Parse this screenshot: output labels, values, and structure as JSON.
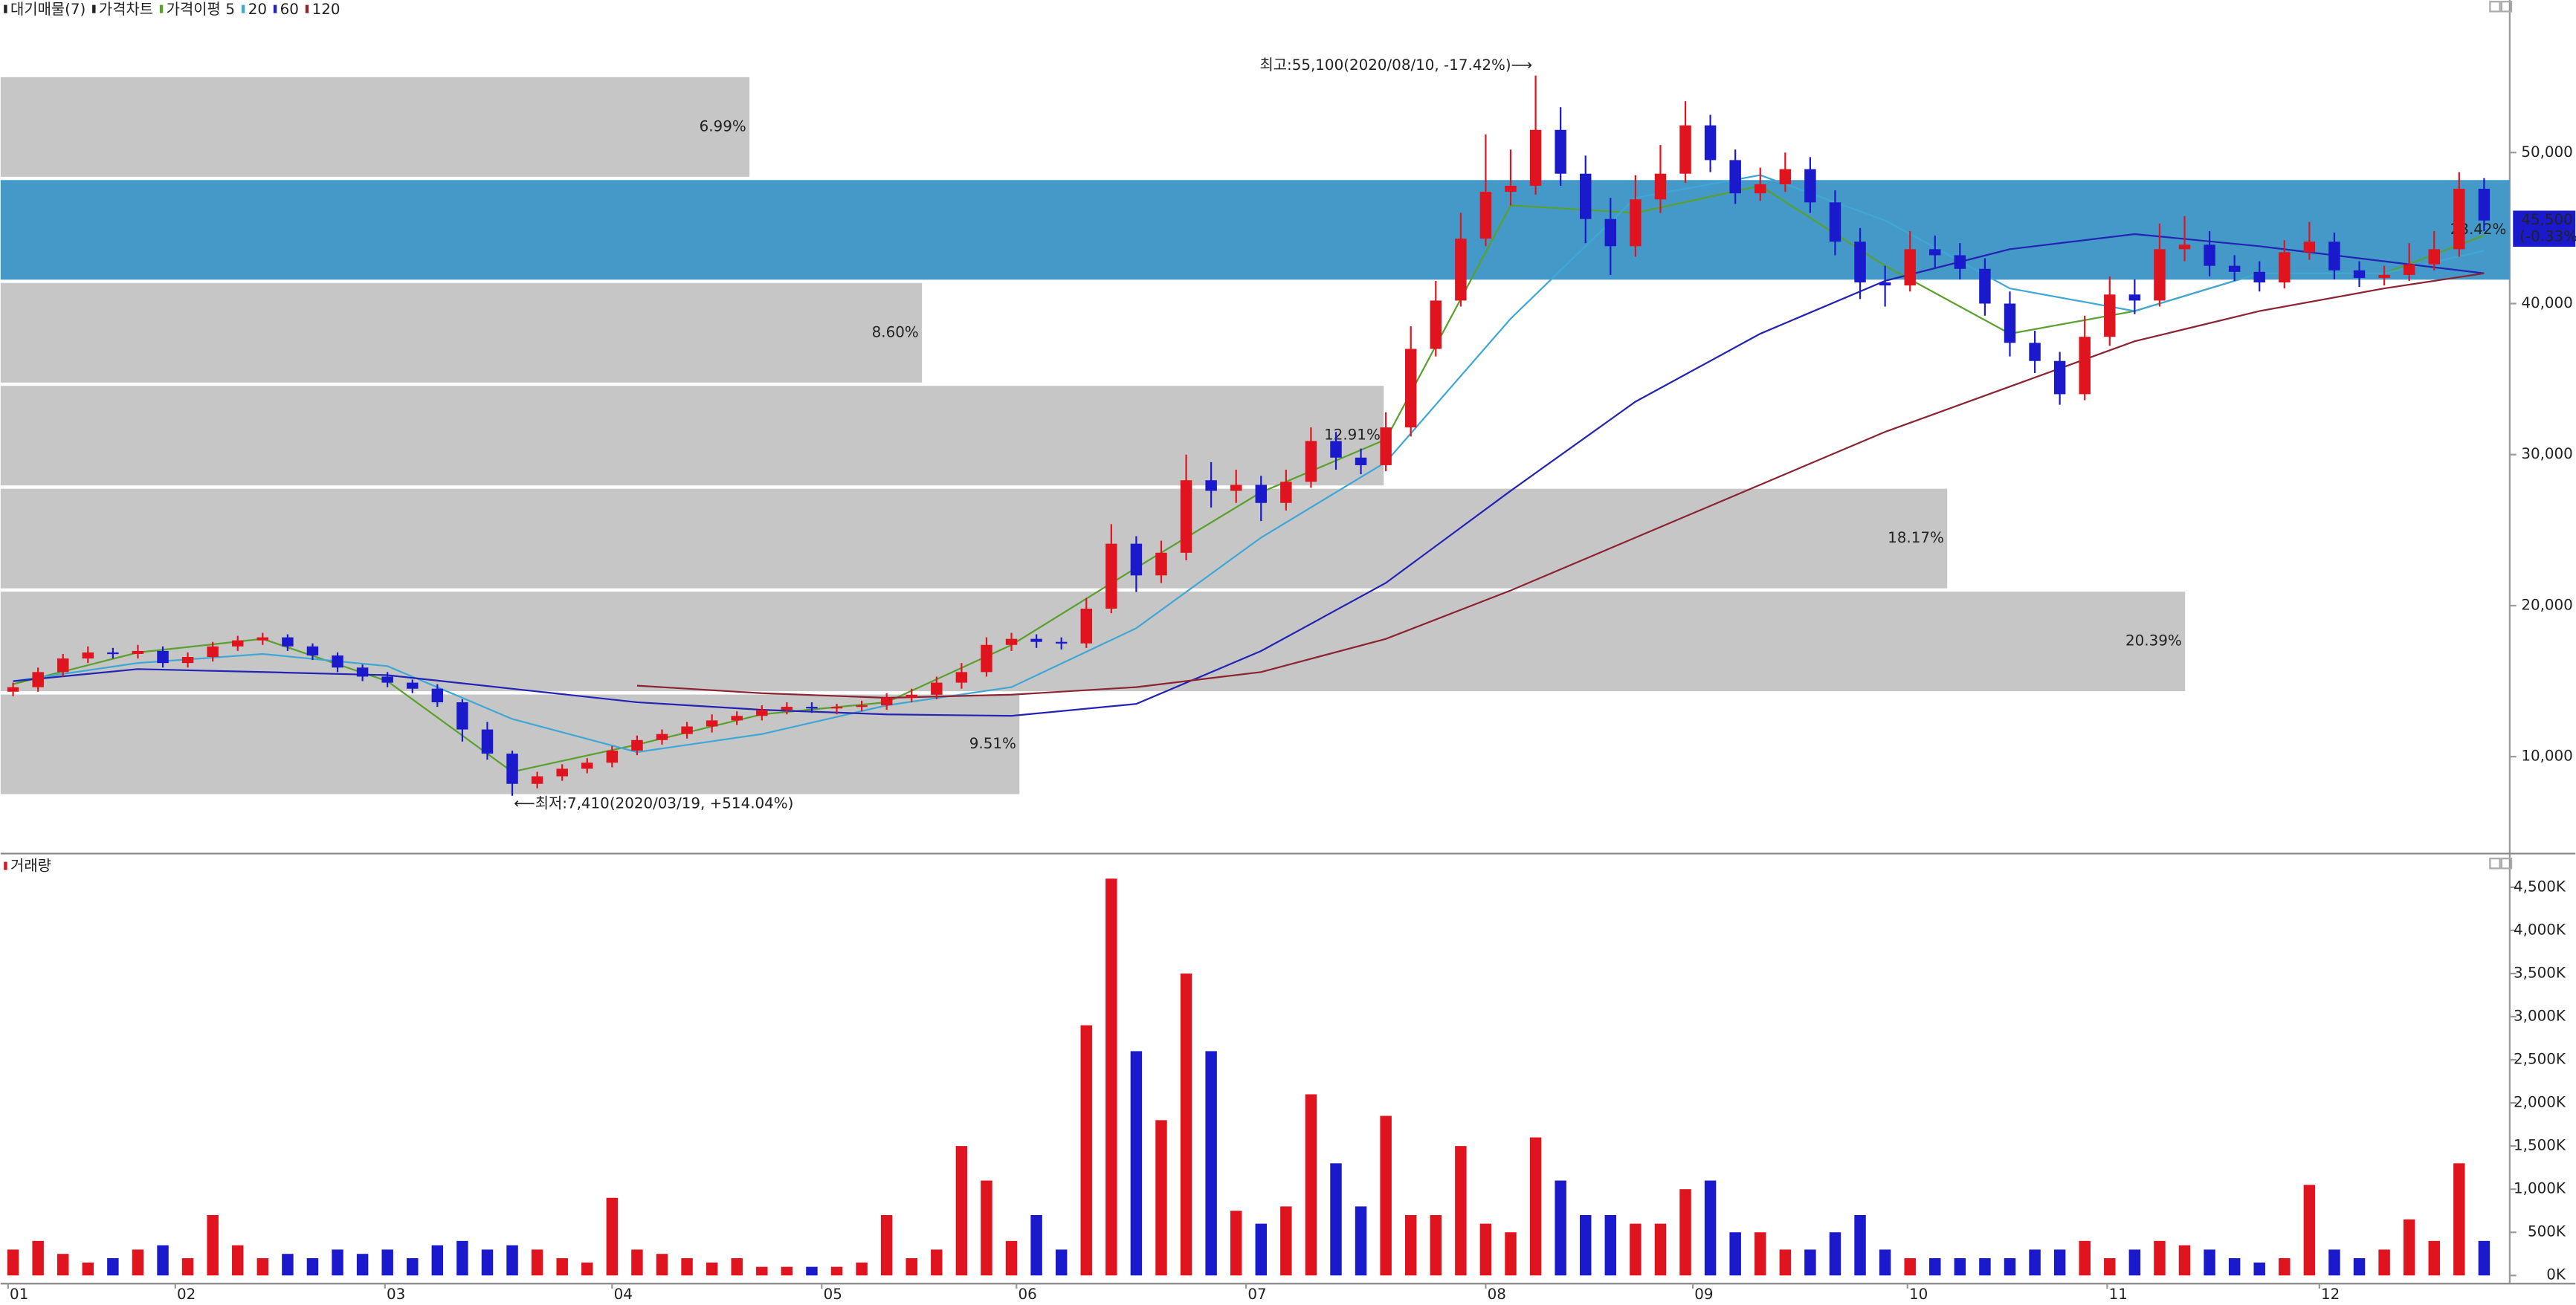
{
  "chart_data": [
    {
      "type": "candlestick",
      "price_name": "가격차트",
      "up_color": "#e0141e",
      "down_color": "#1a1acc",
      "xticks": [
        {
          "value": 0.3,
          "label": "01"
        },
        {
          "value": 7.0,
          "label": "02"
        },
        {
          "value": 15.4,
          "label": "03"
        },
        {
          "value": 24.5,
          "label": "04"
        },
        {
          "value": 32.9,
          "label": "05"
        },
        {
          "value": 40.7,
          "label": "06"
        },
        {
          "value": 49.9,
          "label": "07"
        },
        {
          "value": 59.5,
          "label": "08"
        },
        {
          "value": 67.8,
          "label": "09"
        },
        {
          "value": 76.4,
          "label": "10"
        },
        {
          "value": 84.4,
          "label": "11"
        },
        {
          "value": 92.9,
          "label": "12"
        }
      ],
      "ylim": [
        3800,
        60100
      ],
      "yticks": [
        {
          "value": 10000,
          "label": "10,000"
        },
        {
          "value": 20000,
          "label": "20,000"
        },
        {
          "value": 30000,
          "label": "30,000"
        },
        {
          "value": 40000,
          "label": "40,000"
        },
        {
          "value": 50000,
          "label": "50,000"
        }
      ],
      "open": [
        14300,
        14600,
        15600,
        16500,
        16900,
        16800,
        17000,
        16200,
        16600,
        17300,
        17700,
        17900,
        17300,
        16700,
        15900,
        15300,
        14900,
        14500,
        13600,
        11800,
        10200,
        8200,
        8700,
        9200,
        9600,
        10400,
        11100,
        11500,
        12000,
        12400,
        12700,
        13100,
        13300,
        13200,
        13300,
        13400,
        13900,
        14100,
        14900,
        15600,
        17400,
        17800,
        17600,
        17500,
        19800,
        24100,
        22000,
        23500,
        28300,
        27600,
        28000,
        26800,
        28200,
        30900,
        29800,
        29300,
        31800,
        37000,
        40200,
        44300,
        47400,
        47800,
        51500,
        48600,
        45600,
        43800,
        46900,
        48600,
        51800,
        49500,
        47300,
        47900,
        48900,
        46700,
        44100,
        41400,
        41200,
        43600,
        43200,
        42300,
        40000,
        37400,
        36200,
        34000,
        37800,
        40600,
        40200,
        43600,
        43900,
        42500,
        42100,
        41400,
        43400,
        44100,
        42200,
        41700,
        41900,
        42600,
        43600,
        47600
      ],
      "high": [
        14900,
        15900,
        16800,
        17300,
        17200,
        17400,
        17300,
        16900,
        17600,
        18000,
        18200,
        18100,
        17500,
        16900,
        16100,
        15600,
        15100,
        14800,
        13800,
        12300,
        10400,
        9000,
        9500,
        9900,
        10700,
        11400,
        11800,
        12300,
        12800,
        13000,
        13400,
        13600,
        13600,
        13500,
        13700,
        14200,
        14500,
        15300,
        16200,
        17900,
        18200,
        18100,
        17900,
        20500,
        25400,
        24600,
        24300,
        30000,
        29500,
        29000,
        28600,
        29000,
        31800,
        31500,
        30400,
        32800,
        38500,
        41500,
        46000,
        51200,
        50200,
        55100,
        53000,
        49800,
        47000,
        48500,
        50500,
        53400,
        52500,
        50200,
        49000,
        50000,
        49700,
        47500,
        45000,
        42500,
        44800,
        44500,
        44000,
        43000,
        40800,
        38200,
        36800,
        39200,
        41800,
        41600,
        45300,
        45800,
        44800,
        43200,
        42800,
        44200,
        45400,
        44700,
        42800,
        42500,
        44000,
        44800,
        48700,
        48300
      ],
      "low": [
        14000,
        14300,
        15300,
        16200,
        16500,
        16500,
        15900,
        15900,
        16300,
        17000,
        17400,
        17000,
        16400,
        15600,
        15000,
        14600,
        14200,
        13300,
        11000,
        9800,
        7410,
        7900,
        8400,
        8900,
        9300,
        10100,
        10800,
        11200,
        11600,
        12100,
        12400,
        12800,
        12900,
        12800,
        13000,
        13100,
        13600,
        13800,
        14500,
        15300,
        17000,
        17200,
        17100,
        17200,
        19500,
        20900,
        21500,
        23000,
        26500,
        26800,
        25600,
        26300,
        27800,
        29000,
        28700,
        28900,
        31200,
        36500,
        39800,
        43800,
        46500,
        47200,
        47800,
        44000,
        41900,
        43100,
        46000,
        48000,
        48700,
        46600,
        46800,
        47400,
        46000,
        43200,
        40300,
        39800,
        40800,
        42400,
        41600,
        39200,
        36500,
        35400,
        33300,
        33600,
        37200,
        39300,
        39800,
        42800,
        41800,
        41500,
        40800,
        41000,
        42900,
        41600,
        41100,
        41200,
        41500,
        42200,
        43100,
        44800
      ],
      "close": [
        14600,
        15600,
        16500,
        16900,
        16800,
        17000,
        16200,
        16600,
        17300,
        17700,
        17900,
        17300,
        16700,
        15900,
        15300,
        14900,
        14500,
        13600,
        11800,
        10200,
        8200,
        8700,
        9200,
        9600,
        10400,
        11100,
        11500,
        12000,
        12400,
        12700,
        13100,
        13300,
        13200,
        13300,
        13400,
        13900,
        14100,
        14900,
        15600,
        17400,
        17800,
        17600,
        17500,
        19800,
        24100,
        22000,
        23500,
        28300,
        27600,
        28000,
        26800,
        28200,
        30900,
        29800,
        29300,
        31800,
        37000,
        40200,
        44300,
        47400,
        47800,
        51500,
        48600,
        45600,
        43800,
        46900,
        48600,
        51800,
        49500,
        47300,
        47900,
        48900,
        46700,
        44100,
        41400,
        41200,
        43600,
        43200,
        42300,
        40000,
        37400,
        36200,
        34000,
        37800,
        40600,
        40200,
        43600,
        43900,
        42500,
        42100,
        41400,
        43400,
        44100,
        42200,
        41700,
        41900,
        42600,
        43600,
        47600,
        45500
      ],
      "moving_averages": {
        "title": "가격이평",
        "x": [
          0,
          5,
          10,
          15,
          20,
          25,
          30,
          35,
          40,
          45,
          50,
          55,
          60,
          65,
          70,
          75,
          80,
          85,
          90,
          95,
          99
        ],
        "series": [
          {
            "name": "5",
            "color": "#5aa02c",
            "values": [
              14800,
              16900,
              17800,
              15000,
              9000,
              10800,
              12800,
              13600,
              17400,
              22500,
              27500,
              31000,
              46500,
              46000,
              47800,
              42500,
              38000,
              39500,
              42000,
              42000,
              44500
            ]
          },
          {
            "name": "20",
            "color": "#3fa7d6",
            "values": [
              15000,
              16200,
              16800,
              16000,
              12500,
              10300,
              11500,
              13400,
              14600,
              18500,
              24500,
              29500,
              39000,
              47000,
              48500,
              45500,
              41000,
              39500,
              42000,
              42000,
              43500
            ]
          },
          {
            "name": "60",
            "color": "#2323b4",
            "values": [
              15000,
              15800,
              15600,
              15400,
              14500,
              13600,
              13100,
              12800,
              12700,
              13500,
              17000,
              21500,
              27600,
              33500,
              38000,
              41500,
              43600,
              44600,
              43800,
              42800,
              42000
            ]
          },
          {
            "name": "120",
            "color": "#8b2332",
            "values": [
              null,
              null,
              null,
              null,
              null,
              14700,
              14200,
              13900,
              14100,
              14600,
              15600,
              17800,
              21000,
              24500,
              28000,
              31500,
              34500,
              37500,
              39500,
              41000,
              42000
            ]
          }
        ]
      },
      "supply_zones": {
        "title": "대기매물(7)",
        "color": "#c6c6c6",
        "highlight_color": "#4499c9",
        "highlight": 5,
        "bins": [
          7410,
          14223,
          21036,
          27849,
          34661,
          41474,
          48287,
          55100
        ],
        "values": [
          9.51,
          20.39,
          18.17,
          12.91,
          8.6,
          23.42,
          6.99
        ],
        "value_labels": [
          "9.51%",
          "20.39%",
          "18.17%",
          "12.91%",
          "8.60%",
          "23.42%",
          "6.99%"
        ]
      },
      "annotations": {
        "high": "최고:55,100(2020/08/10, -17.42%)⟶",
        "low": "⟵최저:7,410(2020/03/19, +514.04%)"
      },
      "last_price": {
        "label": "45,500",
        "change": "(-0.33%)"
      }
    },
    {
      "type": "volume_bar",
      "title": "거래량",
      "ylim": [
        0,
        4700
      ],
      "yticks": [
        {
          "value": 0,
          "label": "0K"
        },
        {
          "value": 500,
          "label": "500K"
        },
        {
          "value": 1000,
          "label": "1,000K"
        },
        {
          "value": 1500,
          "label": "1,500K"
        },
        {
          "value": 2000,
          "label": "2,000K"
        },
        {
          "value": 2500,
          "label": "2,500K"
        },
        {
          "value": 3000,
          "label": "3,000K"
        },
        {
          "value": 3500,
          "label": "3,500K"
        },
        {
          "value": 4000,
          "label": "4,000K"
        },
        {
          "value": 4500,
          "label": "4,500K"
        }
      ],
      "values": [
        300,
        400,
        250,
        150,
        200,
        300,
        350,
        200,
        700,
        350,
        200,
        250,
        200,
        300,
        250,
        300,
        200,
        350,
        400,
        300,
        350,
        300,
        200,
        150,
        900,
        300,
        250,
        200,
        150,
        200,
        100,
        100,
        100,
        100,
        150,
        700,
        200,
        300,
        1500,
        1100,
        400,
        700,
        300,
        2900,
        4600,
        2600,
        1800,
        3500,
        2600,
        750,
        600,
        800,
        2100,
        1300,
        800,
        1850,
        700,
        700,
        1500,
        600,
        500,
        1600,
        1100,
        700,
        700,
        600,
        600,
        1000,
        1100,
        500,
        500,
        300,
        300,
        500,
        700,
        300,
        200,
        200,
        200,
        200,
        200,
        300,
        300,
        400,
        200,
        300,
        400,
        350,
        300,
        200,
        150,
        200,
        1050,
        300,
        200,
        300,
        650,
        400,
        1300,
        400
      ]
    }
  ]
}
